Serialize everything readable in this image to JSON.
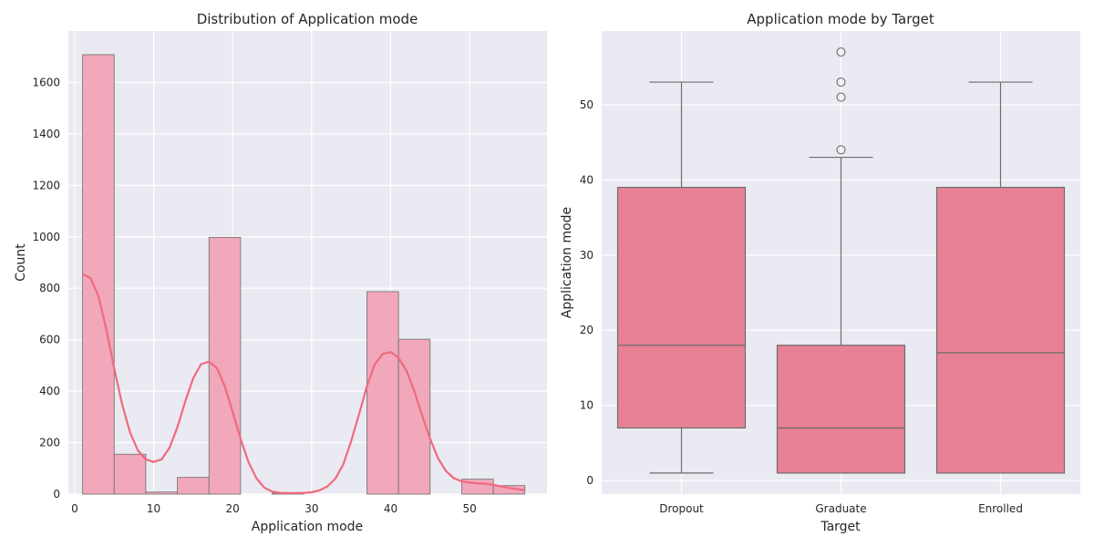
{
  "chart_data": [
    {
      "type": "histogram",
      "title": "Distribution of Application mode",
      "xlabel": "Application mode",
      "ylabel": "Count",
      "xlim": [
        -0.8,
        59.8
      ],
      "ylim": [
        0,
        1800
      ],
      "xticks": [
        0,
        10,
        20,
        30,
        40,
        50
      ],
      "yticks": [
        0,
        200,
        400,
        600,
        800,
        1000,
        1200,
        1400,
        1600
      ],
      "grid": true,
      "bin_edges": [
        1,
        5,
        9,
        13,
        17,
        21,
        25,
        29,
        33,
        37,
        41,
        45,
        49,
        53,
        57
      ],
      "counts": [
        1708,
        155,
        8,
        65,
        998,
        0,
        4,
        0,
        0,
        787,
        602,
        0,
        58,
        33
      ],
      "kde_points": [
        [
          1,
          855
        ],
        [
          2,
          840
        ],
        [
          3,
          770
        ],
        [
          4,
          640
        ],
        [
          5,
          490
        ],
        [
          6,
          350
        ],
        [
          7,
          240
        ],
        [
          8,
          170
        ],
        [
          9,
          135
        ],
        [
          10,
          125
        ],
        [
          11,
          135
        ],
        [
          12,
          180
        ],
        [
          13,
          260
        ],
        [
          14,
          360
        ],
        [
          15,
          450
        ],
        [
          16,
          505
        ],
        [
          17,
          515
        ],
        [
          18,
          490
        ],
        [
          19,
          420
        ],
        [
          20,
          320
        ],
        [
          21,
          215
        ],
        [
          22,
          125
        ],
        [
          23,
          62
        ],
        [
          24,
          25
        ],
        [
          25,
          10
        ],
        [
          26,
          5
        ],
        [
          27,
          4
        ],
        [
          28,
          4
        ],
        [
          29,
          5
        ],
        [
          30,
          7
        ],
        [
          31,
          15
        ],
        [
          32,
          30
        ],
        [
          33,
          60
        ],
        [
          34,
          115
        ],
        [
          35,
          205
        ],
        [
          36,
          310
        ],
        [
          37,
          420
        ],
        [
          38,
          505
        ],
        [
          39,
          545
        ],
        [
          40,
          552
        ],
        [
          41,
          530
        ],
        [
          42,
          480
        ],
        [
          43,
          400
        ],
        [
          44,
          305
        ],
        [
          45,
          215
        ],
        [
          46,
          140
        ],
        [
          47,
          90
        ],
        [
          48,
          62
        ],
        [
          49,
          50
        ],
        [
          50,
          45
        ],
        [
          51,
          42
        ],
        [
          52,
          40
        ],
        [
          53,
          36
        ],
        [
          54,
          30
        ],
        [
          55,
          24
        ],
        [
          56,
          19
        ],
        [
          57,
          15
        ]
      ],
      "colors": {
        "bar": "#f0a8ba",
        "bar_edge": "#6d6d6d",
        "kde": "#f1697f"
      }
    },
    {
      "type": "box",
      "title": "Application mode by Target",
      "xlabel": "Target",
      "ylabel": "Application mode",
      "ylim": [
        -1.8,
        59.8
      ],
      "yticks": [
        0,
        10,
        20,
        30,
        40,
        50
      ],
      "grid": true,
      "categories": [
        "Dropout",
        "Graduate",
        "Enrolled"
      ],
      "boxes": [
        {
          "whisker_low": 1,
          "q1": 7,
          "median": 18,
          "q3": 39,
          "whisker_high": 53,
          "outliers": []
        },
        {
          "whisker_low": 1,
          "q1": 1,
          "median": 7,
          "q3": 18,
          "whisker_high": 43,
          "outliers": [
            44,
            51,
            53,
            57
          ]
        },
        {
          "whisker_low": 1,
          "q1": 1,
          "median": 17,
          "q3": 39,
          "whisker_high": 53,
          "outliers": []
        }
      ],
      "colors": {
        "box": "#e88195",
        "edge": "#6d6d6d"
      }
    }
  ],
  "style": {
    "plot_bg": "#eaeaf2",
    "grid": "#ffffff"
  }
}
